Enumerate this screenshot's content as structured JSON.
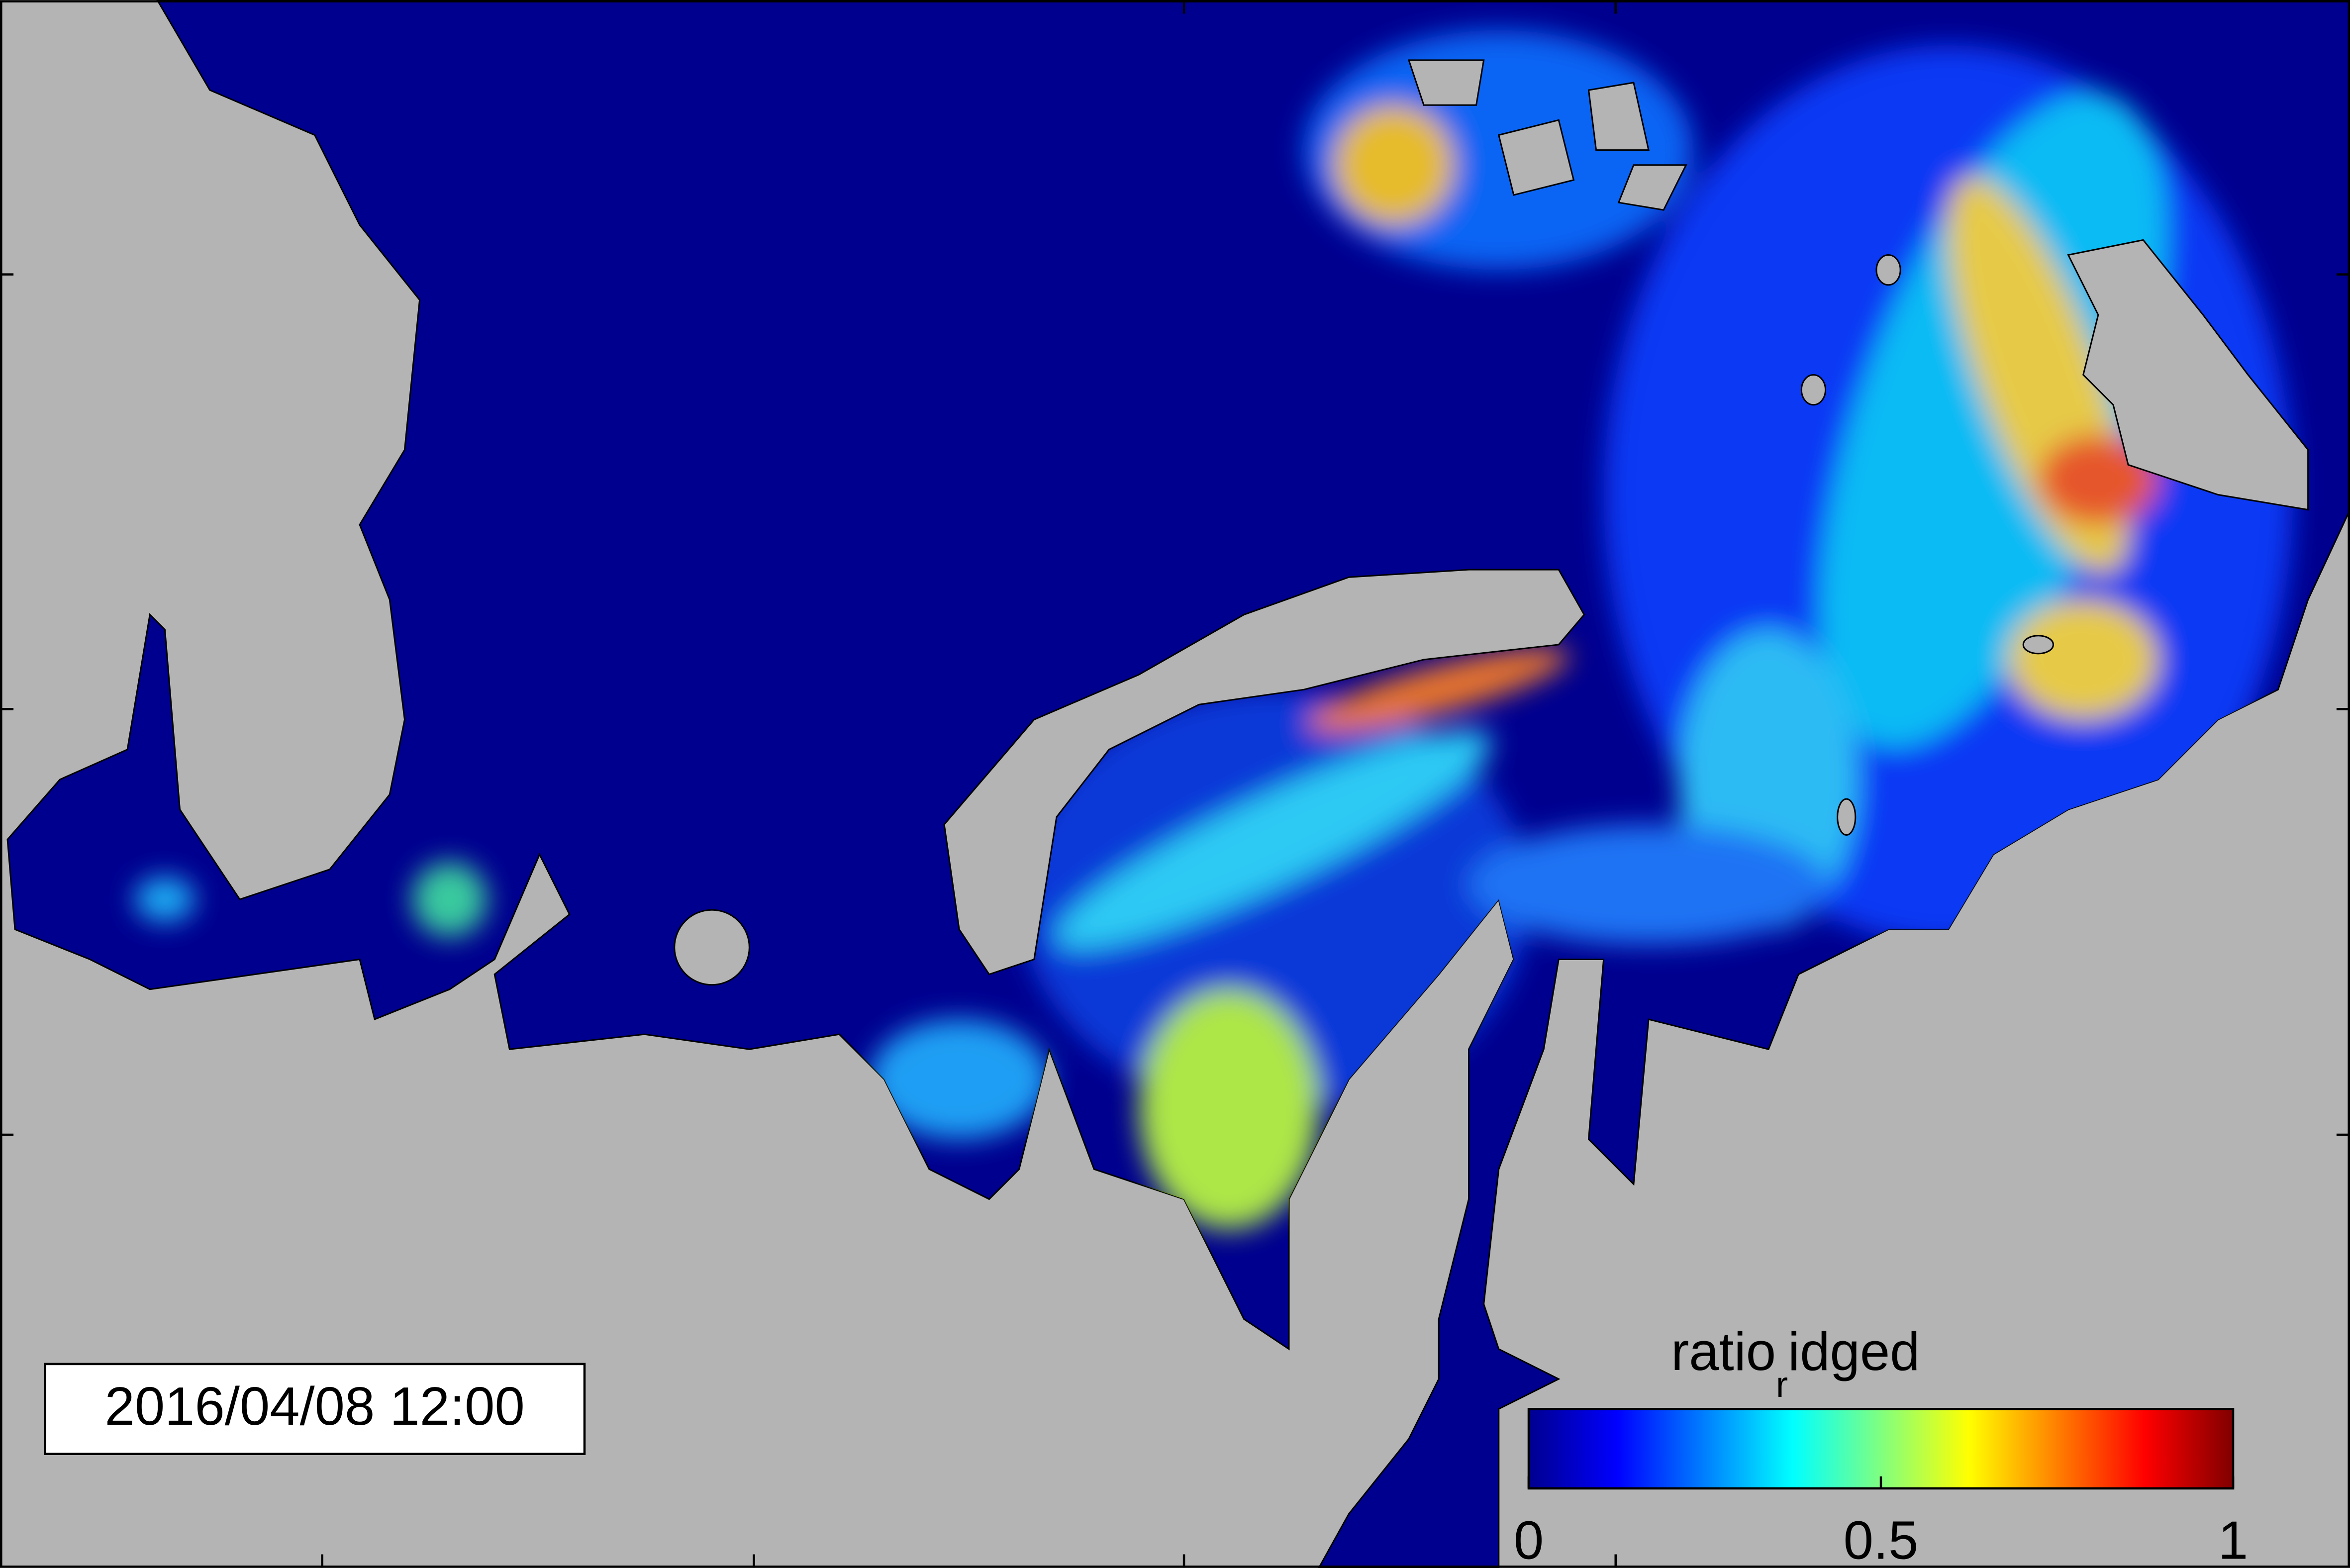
{
  "timestamp": "2016/04/08 12:00",
  "colorbar": {
    "label": {
      "main": "ratio",
      "sub": "r",
      "rest": "idged"
    },
    "lim": [
      0,
      1
    ],
    "ticks": [
      0,
      0.5,
      1
    ],
    "colormap": "jet"
  }
}
